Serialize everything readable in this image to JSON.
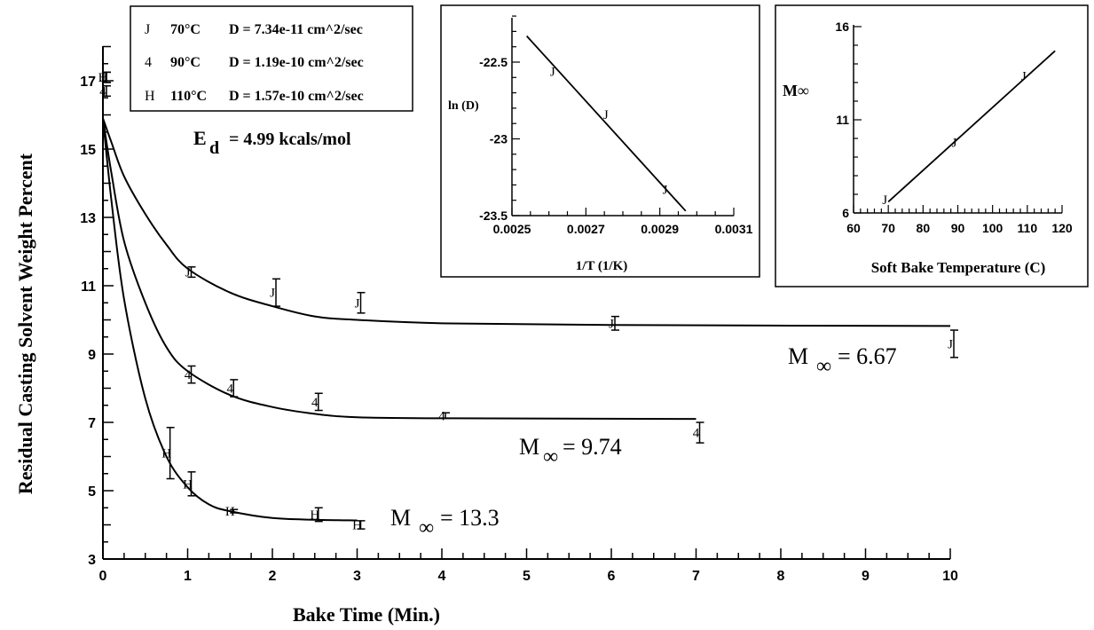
{
  "chart_data": [
    {
      "type": "scatter",
      "xlabel": "Bake Time (Min.)",
      "ylabel": "Residual Casting Solvent Weight Percent",
      "xlim": [
        0,
        10
      ],
      "ylim": [
        3,
        18
      ],
      "xticks": [
        "0",
        "1",
        "2",
        "3",
        "4",
        "5",
        "6",
        "7",
        "8",
        "9",
        "10"
      ],
      "yticks": [
        "3",
        "5",
        "7",
        "9",
        "11",
        "13",
        "15",
        "17"
      ],
      "legend": [
        {
          "marker": "J",
          "temp": "70°C",
          "d": "D = 7.34e-11 cm^2/sec"
        },
        {
          "marker": "4",
          "temp": "90°C",
          "d": "D = 1.19e-10 cm^2/sec"
        },
        {
          "marker": "H",
          "temp": "110°C",
          "d": "D = 1.57e-10 cm^2/sec"
        }
      ],
      "activation": {
        "label": "E",
        "sub": "d",
        "value": "= 4.99 kcals/mol"
      },
      "series": [
        {
          "name": "70°C",
          "marker": "J",
          "m_inf": 6.67,
          "label_sub": "∞",
          "label_main": "M",
          "label_value": "= 6.67",
          "points": [
            {
              "x": 0,
              "y": 17.1,
              "err": 0.15
            },
            {
              "x": 1,
              "y": 11.4,
              "err": 0.15
            },
            {
              "x": 2,
              "y": 10.8,
              "err": 0.4
            },
            {
              "x": 3,
              "y": 10.5,
              "err": 0.3
            },
            {
              "x": 6,
              "y": 9.9,
              "err": 0.2
            },
            {
              "x": 10,
              "y": 9.3,
              "err": 0.4
            }
          ],
          "curve": [
            [
              0,
              15.9
            ],
            [
              0.1,
              15.2
            ],
            [
              0.25,
              14.2
            ],
            [
              0.5,
              13.1
            ],
            [
              0.75,
              12.2
            ],
            [
              1,
              11.5
            ],
            [
              1.5,
              10.8
            ],
            [
              2,
              10.4
            ],
            [
              2.5,
              10.1
            ],
            [
              3,
              10.0
            ],
            [
              4,
              9.9
            ],
            [
              6,
              9.85
            ],
            [
              10,
              9.82
            ]
          ]
        },
        {
          "name": "90°C",
          "marker": "4",
          "m_inf": 9.74,
          "label_sub": "∞",
          "label_main": "M",
          "label_value": "= 9.74",
          "points": [
            {
              "x": 0,
              "y": 16.7,
              "err": 0.15
            },
            {
              "x": 1,
              "y": 8.4,
              "err": 0.25
            },
            {
              "x": 1.5,
              "y": 8.0,
              "err": 0.25
            },
            {
              "x": 2.5,
              "y": 7.6,
              "err": 0.25
            },
            {
              "x": 4,
              "y": 7.2,
              "err": 0.08
            },
            {
              "x": 7,
              "y": 6.7,
              "err": 0.3
            }
          ],
          "curve": [
            [
              0,
              15.9
            ],
            [
              0.1,
              14.3
            ],
            [
              0.25,
              12.3
            ],
            [
              0.5,
              10.5
            ],
            [
              0.75,
              9.2
            ],
            [
              1,
              8.5
            ],
            [
              1.5,
              7.8
            ],
            [
              2,
              7.45
            ],
            [
              2.5,
              7.25
            ],
            [
              3,
              7.15
            ],
            [
              4,
              7.12
            ],
            [
              7,
              7.1
            ]
          ]
        },
        {
          "name": "110°C",
          "marker": "H",
          "m_inf": 13.3,
          "label_sub": "∞",
          "label_main": "M",
          "label_value": "= 13.3",
          "points": [
            {
              "x": 0,
              "y": 17.1,
              "err": 0.15
            },
            {
              "x": 0.75,
              "y": 6.1,
              "err": 0.75
            },
            {
              "x": 1,
              "y": 5.2,
              "err": 0.35
            },
            {
              "x": 1.5,
              "y": 4.4,
              "err": 0.05
            },
            {
              "x": 2.5,
              "y": 4.3,
              "err": 0.2
            },
            {
              "x": 3,
              "y": 4.0,
              "err": 0.12
            }
          ],
          "curve": [
            [
              0,
              15.9
            ],
            [
              0.1,
              13.5
            ],
            [
              0.25,
              10.6
            ],
            [
              0.5,
              7.7
            ],
            [
              0.75,
              6.0
            ],
            [
              1,
              5.1
            ],
            [
              1.25,
              4.6
            ],
            [
              1.5,
              4.4
            ],
            [
              2,
              4.2
            ],
            [
              2.5,
              4.15
            ],
            [
              3,
              4.13
            ]
          ]
        }
      ]
    },
    {
      "type": "line",
      "xlabel": "1/T (1/K)",
      "ylabel": "ln (D)",
      "xlim": [
        0.0025,
        0.0031
      ],
      "ylim": [
        -23.5,
        -22.5
      ],
      "xticks": [
        "0.0025",
        "0.0027",
        "0.0029",
        "0.0031"
      ],
      "yticks": [
        "-22.5",
        "-23",
        "-23.5"
      ],
      "marker": "J",
      "points": [
        {
          "x": 0.00261,
          "y": -22.56
        },
        {
          "x": 0.002754,
          "y": -22.84
        },
        {
          "x": 0.002914,
          "y": -23.33
        }
      ],
      "line": [
        [
          0.00254,
          -22.33
        ],
        [
          0.00297,
          -23.47
        ]
      ]
    },
    {
      "type": "line",
      "xlabel": "Soft Bake Temperature (C)",
      "ylabel": "M∞",
      "xlim": [
        60,
        120
      ],
      "ylim": [
        6,
        16
      ],
      "xticks": [
        "60",
        "70",
        "80",
        "90",
        "100",
        "110",
        "120"
      ],
      "yticks": [
        "6",
        "11",
        "16"
      ],
      "marker": "J",
      "points": [
        {
          "x": 70,
          "y": 6.67
        },
        {
          "x": 90,
          "y": 9.74
        },
        {
          "x": 110,
          "y": 13.3
        }
      ],
      "line": [
        [
          70,
          6.6
        ],
        [
          118,
          14.7
        ]
      ]
    }
  ]
}
